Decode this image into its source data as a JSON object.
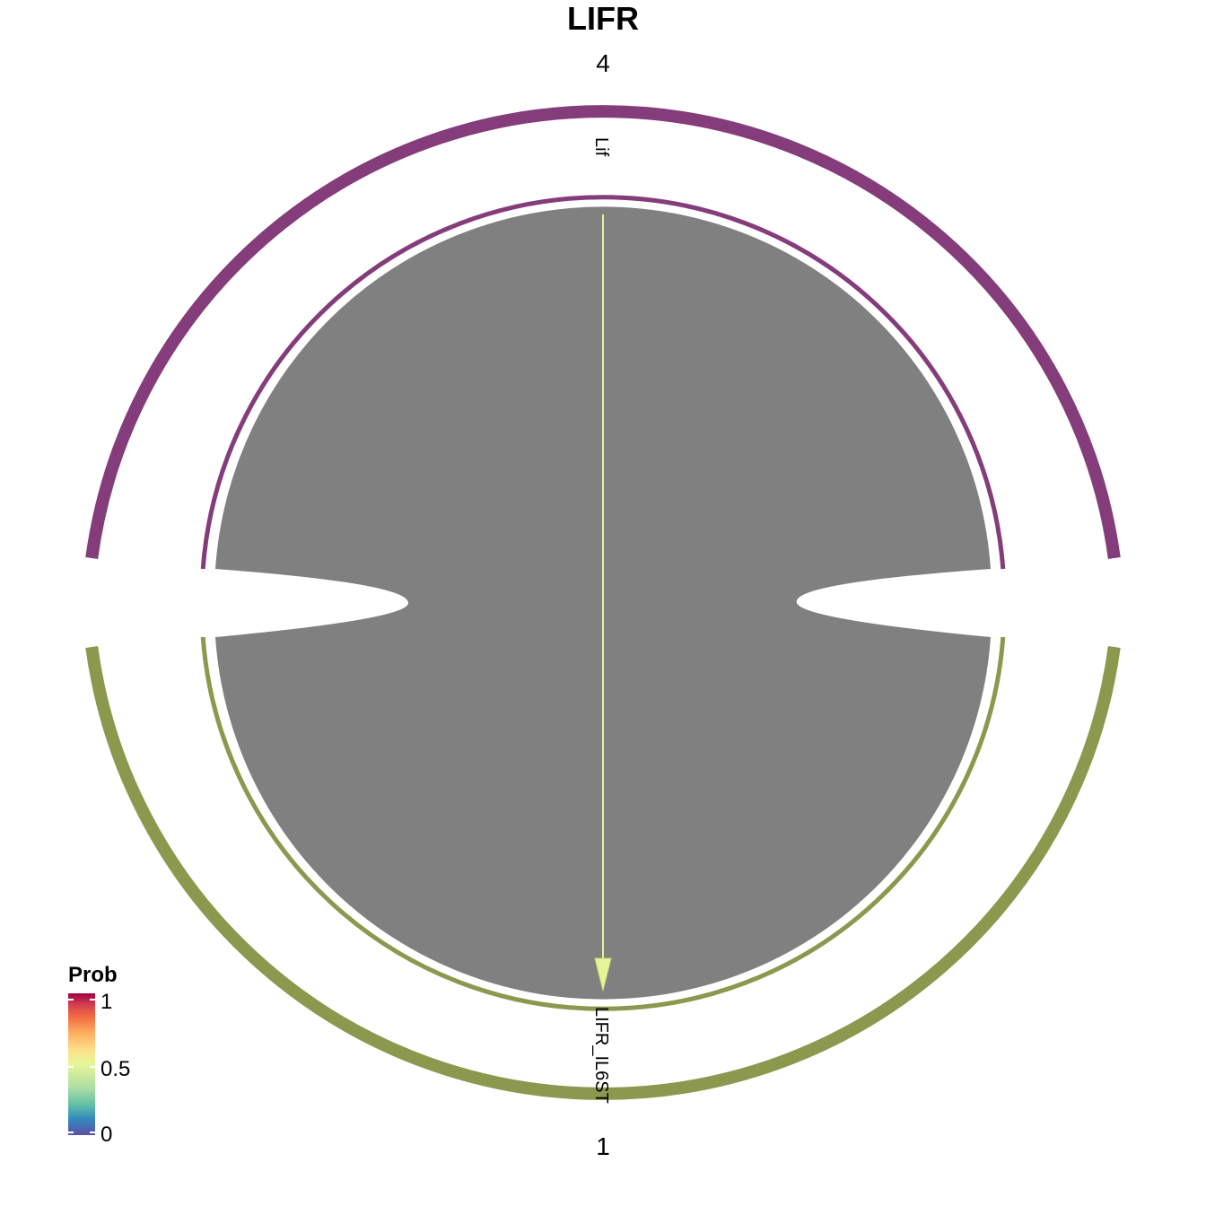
{
  "title": "LIFR",
  "groups": [
    {
      "name": "4",
      "color": "#843C7A",
      "sector_label": "Lif"
    },
    {
      "name": "1",
      "color": "#8A994E",
      "sector_label": "LIFR_IL6ST"
    }
  ],
  "links": [
    {
      "from": "Lif",
      "to": "LIFR_IL6ST",
      "prob": 0.5,
      "color": "#E6F598",
      "fill": "#808080"
    }
  ],
  "legend": {
    "title": "Prob",
    "ticks": [
      "1",
      "0.5",
      "0"
    ],
    "colors": [
      "#5E4FA2",
      "#3288BD",
      "#66C2A5",
      "#ABDDA4",
      "#E6F598",
      "#FEE08B",
      "#FDAE61",
      "#F46D43",
      "#D53E4F",
      "#9E0142"
    ]
  }
}
